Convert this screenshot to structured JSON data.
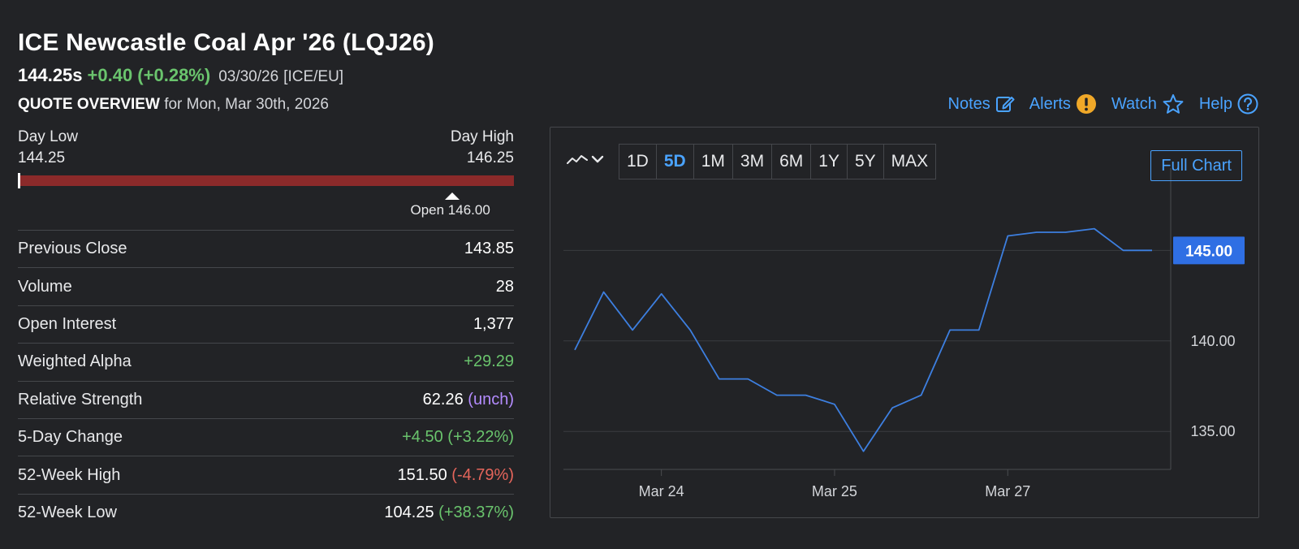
{
  "header": {
    "title": "ICE Newcastle Coal Apr '26 (LQJ26)",
    "last_price": "144.25s",
    "change": "+0.40 (+0.28%)",
    "date": "03/30/26",
    "exchange": "[ICE/EU]",
    "overview_label": "QUOTE OVERVIEW",
    "overview_date": "for Mon, Mar 30th, 2026"
  },
  "toplinks": {
    "notes": "Notes",
    "alerts": "Alerts",
    "watch": "Watch",
    "help": "Help",
    "accent": "#4aa3ff",
    "alert_color": "#f0a828"
  },
  "day_range": {
    "low_label": "Day Low",
    "high_label": "Day High",
    "low": "144.25",
    "high": "146.25",
    "open_label": "Open 146.00",
    "low_value": 144.25,
    "high_value": 146.25,
    "open_value": 146.0,
    "current_value": 144.25
  },
  "stats": {
    "rows": [
      {
        "label": "Previous Close",
        "value": "143.85",
        "extra": "",
        "tone": ""
      },
      {
        "label": "Volume",
        "value": "28",
        "extra": "",
        "tone": ""
      },
      {
        "label": "Open Interest",
        "value": "1,377",
        "extra": "",
        "tone": ""
      },
      {
        "label": "Weighted Alpha",
        "value": "+29.29",
        "extra": "",
        "tone": "pos"
      },
      {
        "label": "Relative Strength",
        "value": "62.26",
        "extra": "(unch)",
        "tone": "unch"
      },
      {
        "label": "5-Day Change",
        "value": "+4.50 (+3.22%)",
        "extra": "",
        "tone": "pos"
      },
      {
        "label": "52-Week High",
        "value": "151.50",
        "extra": "(-4.79%)",
        "tone": "neg"
      },
      {
        "label": "52-Week Low",
        "value": "104.25",
        "extra": "(+38.37%)",
        "tone": "pos"
      }
    ]
  },
  "chart_controls": {
    "chart_type_icon": "line-chart-icon",
    "tabs": [
      "1D",
      "5D",
      "1M",
      "3M",
      "6M",
      "1Y",
      "5Y",
      "MAX"
    ],
    "active_tab": "5D",
    "full_chart": "Full Chart"
  },
  "chart_data": {
    "type": "line",
    "series": [
      {
        "color": "#3d7fe0",
        "values": [
          139.5,
          142.7,
          140.6,
          142.6,
          140.6,
          137.9,
          137.9,
          137.0,
          137.0,
          136.5,
          133.9,
          136.3,
          137.0,
          140.6,
          140.6,
          145.8,
          146.0,
          146.0,
          146.2,
          145.0,
          145.0
        ]
      }
    ],
    "x_tick_labels": [
      "Mar 24",
      "Mar 25",
      "Mar 27"
    ],
    "y_ticks": [
      "135.00",
      "140.00"
    ],
    "ylim": [
      132.9,
      148.2
    ],
    "last_value_label": "145.00",
    "last_value_color": "#2f6fe4",
    "grid": true
  }
}
